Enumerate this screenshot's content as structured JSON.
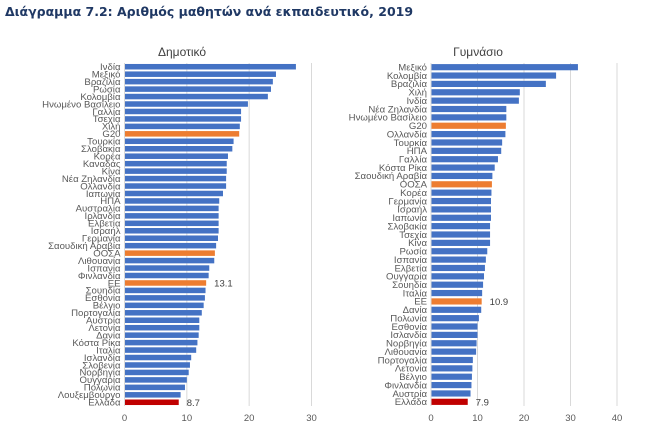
{
  "title": "Διάγραμμα 7.2: Αριθμός μαθητών ανά εκπαιδευτικό, 2019",
  "colors": {
    "default": "#4472c4",
    "aggregate": "#ed7d31",
    "highlight": "#c00000",
    "grid": "#d9d9d9"
  },
  "chart_data": [
    {
      "type": "bar",
      "orientation": "horizontal",
      "title": "Δημοτικό",
      "xlabel": "",
      "ylabel": "",
      "xlim": [
        0,
        30
      ],
      "xticks": [
        "0",
        "10",
        "20",
        "30"
      ],
      "grid": true,
      "categories": [
        "Ινδία",
        "Μεξικό",
        "Βραζιλία",
        "Ρωσία",
        "Κολομβία",
        "Ηνωμένο Βασίλειο",
        "Γαλλία",
        "Τσεχία",
        "Χιλή",
        "G20",
        "Τουρκία",
        "Σλοβακία",
        "Κορέα",
        "Καναδάς",
        "Κίνα",
        "Νέα Ζηλανδία",
        "Ολλανδία",
        "Ιαπωνία",
        "ΗΠΑ",
        "Αυστραλία",
        "Ιρλανδία",
        "Ελβετία",
        "Ισραήλ",
        "Γερμανία",
        "Σαουδική Αραβία",
        "ΟΟΣΑ",
        "Λιθουανία",
        "Ισπανία",
        "Φινλανδία",
        "ΕΕ",
        "Σουηδία",
        "Εσθονία",
        "Βέλγιο",
        "Πορτογαλία",
        "Αυστρία",
        "Λετονία",
        "Δανία",
        "Κόστα Ρίκα",
        "Ιταλία",
        "Ισλανδία",
        "Σλοβενία",
        "Νορβηγία",
        "Ουγγαρία",
        "Πολωνία",
        "Λουξεμβούργο",
        "Ελλάδα"
      ],
      "values": [
        27.5,
        24.3,
        23.8,
        23.5,
        23.0,
        19.8,
        18.7,
        18.7,
        18.5,
        18.4,
        17.5,
        17.3,
        16.6,
        16.4,
        16.4,
        16.3,
        16.3,
        15.8,
        15.2,
        15.1,
        15.1,
        15.1,
        15.1,
        15.0,
        14.7,
        14.5,
        14.4,
        13.6,
        13.5,
        13.1,
        13.0,
        12.9,
        12.7,
        12.4,
        12.0,
        12.0,
        11.9,
        11.7,
        11.5,
        10.7,
        10.5,
        10.3,
        10.0,
        9.7,
        9.0,
        8.7
      ],
      "kinds": [
        "d",
        "d",
        "d",
        "d",
        "d",
        "d",
        "d",
        "d",
        "d",
        "a",
        "d",
        "d",
        "d",
        "d",
        "d",
        "d",
        "d",
        "d",
        "d",
        "d",
        "d",
        "d",
        "d",
        "d",
        "d",
        "a",
        "d",
        "d",
        "d",
        "a",
        "d",
        "d",
        "d",
        "d",
        "d",
        "d",
        "d",
        "d",
        "d",
        "d",
        "d",
        "d",
        "d",
        "d",
        "d",
        "h"
      ],
      "data_labels": {
        "ΕΕ": "13.1",
        "Ελλάδα": "8.7"
      }
    },
    {
      "type": "bar",
      "orientation": "horizontal",
      "title": "Γυμνάσιο",
      "xlabel": "",
      "ylabel": "",
      "xlim": [
        0,
        40
      ],
      "xticks": [
        "0",
        "10",
        "20",
        "30",
        "40"
      ],
      "grid": true,
      "categories": [
        "Μεξικό",
        "Κολομβία",
        "Βραζιλία",
        "Χιλή",
        "Ινδία",
        "Νέα Ζηλανδία",
        "Ηνωμένο Βασίλειο",
        "G20",
        "Ολλανδία",
        "Τουρκία",
        "ΗΠΑ",
        "Γαλλία",
        "Κόστα Ρίκα",
        "Σαουδική Αραβία",
        "ΟΟΣΑ",
        "Κορέα",
        "Γερμανία",
        "Ισραήλ",
        "Ιαπωνία",
        "Σλοβακία",
        "Τσεχία",
        "Κίνα",
        "Ρωσία",
        "Ισπανία",
        "Ελβετία",
        "Ουγγαρία",
        "Σουηδία",
        "Ιταλία",
        "ΕΕ",
        "Δανία",
        "Πολωνία",
        "Εσθονία",
        "Ισλανδία",
        "Νορβηγία",
        "Λιθουανία",
        "Πορτογαλία",
        "Λετονία",
        "Βέλγιο",
        "Φινλανδία",
        "Αυστρία",
        "Ελλάδα"
      ],
      "values": [
        31.6,
        26.9,
        24.7,
        19.1,
        18.9,
        16.2,
        16.2,
        16.1,
        16.0,
        15.3,
        15.1,
        14.4,
        13.7,
        13.2,
        13.1,
        13.0,
        12.9,
        12.9,
        12.9,
        12.7,
        12.7,
        12.7,
        12.1,
        11.8,
        11.6,
        11.4,
        11.2,
        11.0,
        10.9,
        10.8,
        10.3,
        10.0,
        10.0,
        9.8,
        9.7,
        9.0,
        8.9,
        8.8,
        8.7,
        8.5,
        7.9
      ],
      "kinds": [
        "d",
        "d",
        "d",
        "d",
        "d",
        "d",
        "d",
        "a",
        "d",
        "d",
        "d",
        "d",
        "d",
        "d",
        "a",
        "d",
        "d",
        "d",
        "d",
        "d",
        "d",
        "d",
        "d",
        "d",
        "d",
        "d",
        "d",
        "d",
        "a",
        "d",
        "d",
        "d",
        "d",
        "d",
        "d",
        "d",
        "d",
        "d",
        "d",
        "d",
        "h"
      ],
      "data_labels": {
        "ΕΕ": "10.9",
        "Ελλάδα": "7.9"
      }
    }
  ]
}
